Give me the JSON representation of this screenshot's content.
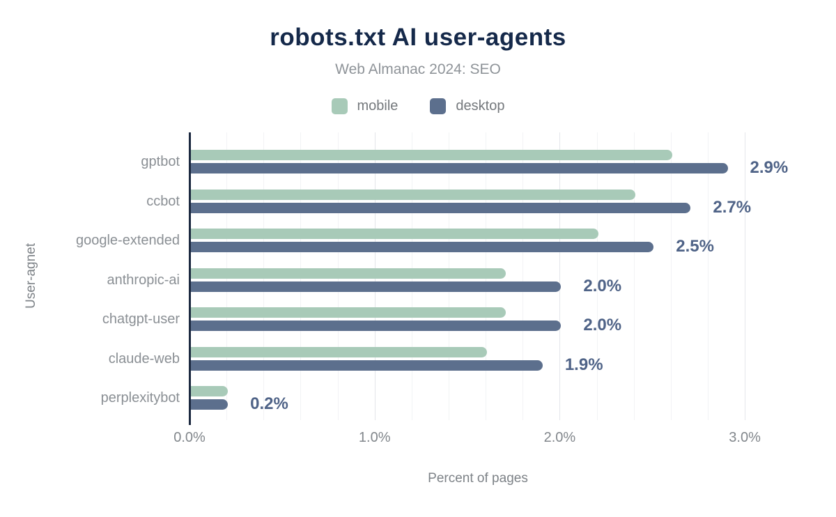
{
  "title": "robots.txt AI user-agents",
  "subtitle": "Web Almanac 2024: SEO",
  "legend": {
    "items": [
      {
        "label": "mobile",
        "color": "#a8cab8"
      },
      {
        "label": "desktop",
        "color": "#5c6f8d"
      }
    ]
  },
  "chart_data": {
    "type": "bar",
    "orientation": "horizontal",
    "title": "robots.txt AI user-agents",
    "subtitle": "Web Almanac 2024: SEO",
    "xlabel": "Percent of pages",
    "ylabel": "User-agnet",
    "categories": [
      "gptbot",
      "ccbot",
      "google-extended",
      "anthropic-ai",
      "chatgpt-user",
      "claude-web",
      "perplexitybot"
    ],
    "series": [
      {
        "name": "mobile",
        "color": "#a8cab8",
        "values": [
          2.6,
          2.4,
          2.2,
          1.7,
          1.7,
          1.6,
          0.2
        ]
      },
      {
        "name": "desktop",
        "color": "#5c6f8d",
        "values": [
          2.9,
          2.7,
          2.5,
          2.0,
          2.0,
          1.9,
          0.2
        ]
      }
    ],
    "value_labels": {
      "labeled_series": "desktop",
      "texts": [
        "2.9%",
        "2.7%",
        "2.5%",
        "2.0%",
        "2.0%",
        "1.9%",
        "0.2%"
      ],
      "color": "#4f6387"
    },
    "x_ticks": [
      {
        "value": 0,
        "label": "0.0%"
      },
      {
        "value": 1,
        "label": "1.0%"
      },
      {
        "value": 2,
        "label": "2.0%"
      },
      {
        "value": 3,
        "label": "3.0%"
      }
    ],
    "xlim": [
      0,
      3.12
    ],
    "grid": {
      "direction": "vertical",
      "minor_step": 0.2,
      "major_step": 1.0
    },
    "legend_position": "top"
  },
  "colors": {
    "background": "#ffffff",
    "title": "#15294a",
    "subtitle": "#8e9398",
    "category_label": "#8a8f94",
    "tick_label": "#81868b",
    "axis_title": "#7d8287",
    "value_label": "#4f6387",
    "axis_line": "#1c2940",
    "grid_minor": "#f2f3f5",
    "grid_major": "#e4e6ea"
  }
}
